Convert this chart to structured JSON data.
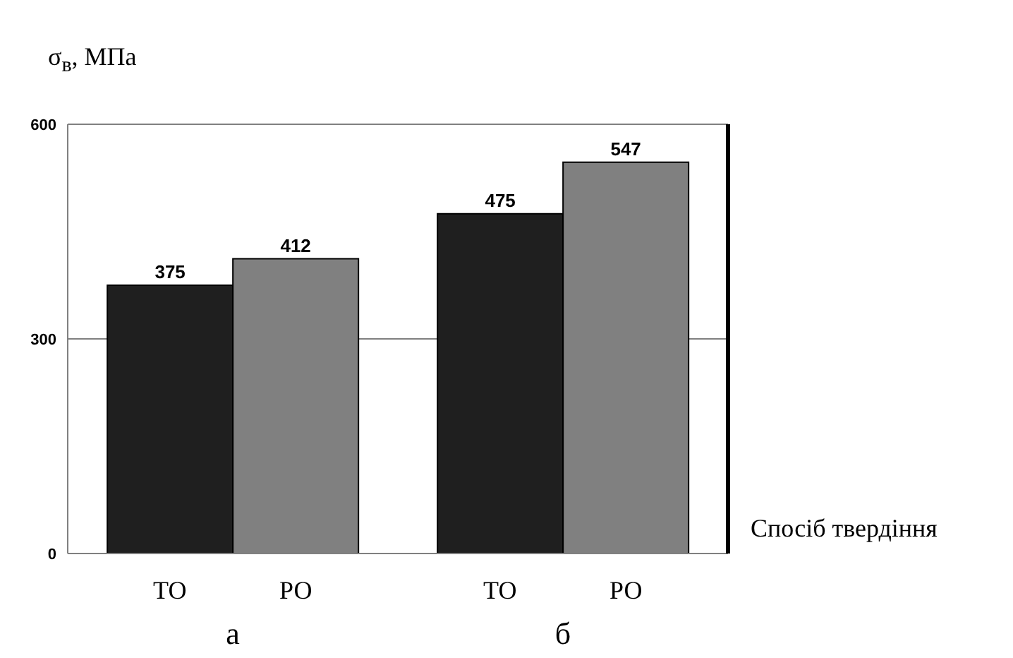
{
  "chart_data": {
    "type": "bar",
    "ylabel": "σ$_{в}$, МПа",
    "xlabel": "Спосіб твердіння",
    "categories": [
      "а",
      "б"
    ],
    "series": [
      {
        "name": "ТО",
        "color": "#1f1f1f",
        "values": [
          375,
          475
        ]
      },
      {
        "name": "РО",
        "color": "#808080",
        "values": [
          412,
          547
        ]
      }
    ],
    "ylim": [
      0,
      600
    ],
    "yticks": [
      0,
      300,
      600
    ],
    "grid": "y",
    "data_labels": true
  }
}
